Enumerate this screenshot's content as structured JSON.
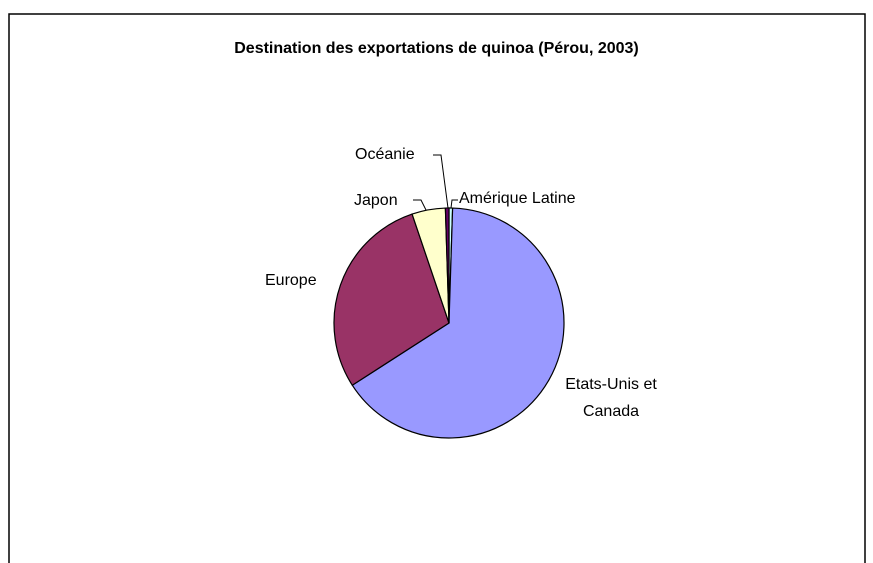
{
  "chart_data": {
    "type": "pie",
    "title": "Destination des exportations de quinoa (Pérou, 2003)",
    "categories": [
      "Amérique Latine",
      "Etats-Unis et Canada",
      "Europe",
      "Japon",
      "Océanie"
    ],
    "values": [
      0.5,
      65.4,
      28.9,
      4.7,
      0.5
    ],
    "colors": [
      "#ccffff",
      "#9999ff",
      "#993366",
      "#ffffcc",
      "#660066"
    ]
  }
}
